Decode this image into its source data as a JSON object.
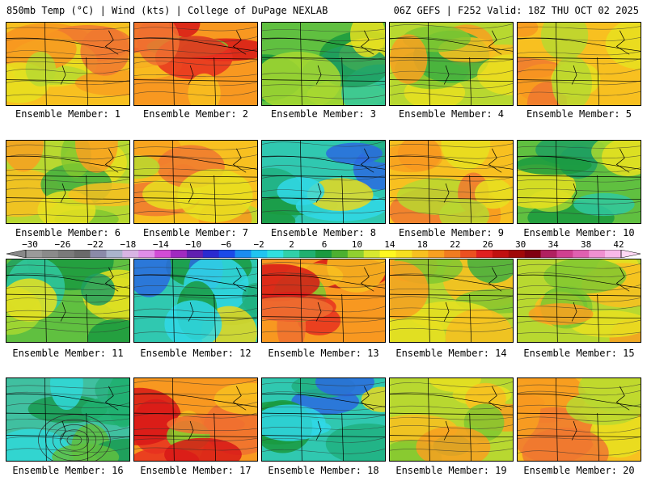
{
  "header": {
    "left_title": "850mb Temp (°C) | Wind (kts) | College of DuPage NEXLAB",
    "right_title": "06Z GEFS | F252 Valid: 18Z THU OCT 02 2025"
  },
  "member_prefix": "Ensemble Member: ",
  "members": [
    {
      "label": "Ensemble Member: 1",
      "style": "warm"
    },
    {
      "label": "Ensemble Member: 2",
      "style": "hot"
    },
    {
      "label": "Ensemble Member: 3",
      "style": "cool"
    },
    {
      "label": "Ensemble Member: 4",
      "style": "mild"
    },
    {
      "label": "Ensemble Member: 5",
      "style": "warm"
    },
    {
      "label": "Ensemble Member: 6",
      "style": "mild"
    },
    {
      "label": "Ensemble Member: 7",
      "style": "warm"
    },
    {
      "label": "Ensemble Member: 8",
      "style": "cold"
    },
    {
      "label": "Ensemble Member: 9",
      "style": "warm"
    },
    {
      "label": "Ensemble Member: 10",
      "style": "cool"
    },
    {
      "label": "Ensemble Member: 11",
      "style": "cool"
    },
    {
      "label": "Ensemble Member: 12",
      "style": "cold"
    },
    {
      "label": "Ensemble Member: 13",
      "style": "hot"
    },
    {
      "label": "Ensemble Member: 14",
      "style": "mild"
    },
    {
      "label": "Ensemble Member: 15",
      "style": "mild"
    },
    {
      "label": "Ensemble Member: 16",
      "style": "low"
    },
    {
      "label": "Ensemble Member: 17",
      "style": "hot"
    },
    {
      "label": "Ensemble Member: 18",
      "style": "cold"
    },
    {
      "label": "Ensemble Member: 19",
      "style": "mild"
    },
    {
      "label": "Ensemble Member: 20",
      "style": "warm"
    }
  ],
  "colorbar": {
    "ticks": [
      "−30",
      "−26",
      "−22",
      "−18",
      "−14",
      "−10",
      "−6",
      "−2",
      "2",
      "6",
      "10",
      "14",
      "18",
      "22",
      "26",
      "30",
      "34",
      "38",
      "42"
    ],
    "colors": [
      "#9a9a9a",
      "#8a8a8a",
      "#7a7a7a",
      "#6a6a6a",
      "#8a8aa8",
      "#aab4cc",
      "#d8b4e4",
      "#e08ee8",
      "#d24cd6",
      "#a02ac0",
      "#6020b0",
      "#2a2ad0",
      "#1a4ae8",
      "#1a8cf0",
      "#20c4f0",
      "#30e0e0",
      "#30d0a8",
      "#20b070",
      "#1a9a40",
      "#4cb030",
      "#90d030",
      "#d8e830",
      "#fff820",
      "#f8e020",
      "#f8c020",
      "#f8a020",
      "#f07c20",
      "#ec5020",
      "#e02020",
      "#c01010",
      "#a00808",
      "#800010",
      "#b02060",
      "#d04090",
      "#e060b0",
      "#f090d0",
      "#f8b8e8"
    ],
    "arrow_left_color": "#888888",
    "arrow_right_color": "#ffd8f4"
  },
  "palettes": {
    "warm": {
      "bg": "#f8c020",
      "blobs": [
        "#f89820",
        "#f07830",
        "#e8e020",
        "#b8d830",
        "#f8a020"
      ]
    },
    "hot": {
      "bg": "#f89820",
      "blobs": [
        "#e83020",
        "#d81818",
        "#f07030",
        "#f8c020",
        "#80c830"
      ]
    },
    "cool": {
      "bg": "#60c040",
      "blobs": [
        "#20a060",
        "#1a9a40",
        "#a8d830",
        "#e8e020",
        "#30c8a0"
      ]
    },
    "mild": {
      "bg": "#b8d830",
      "blobs": [
        "#e8e020",
        "#f8c020",
        "#80c830",
        "#f8a020",
        "#40b040"
      ]
    },
    "cold": {
      "bg": "#30c8b0",
      "blobs": [
        "#20b080",
        "#1a9a40",
        "#2a6ae0",
        "#30d8e8",
        "#e8d820"
      ]
    },
    "low": {
      "bg": "#40c0a0",
      "blobs": [
        "#1a9a50",
        "#20b070",
        "#30d8d8",
        "#60c040",
        "#2ab080"
      ]
    }
  }
}
